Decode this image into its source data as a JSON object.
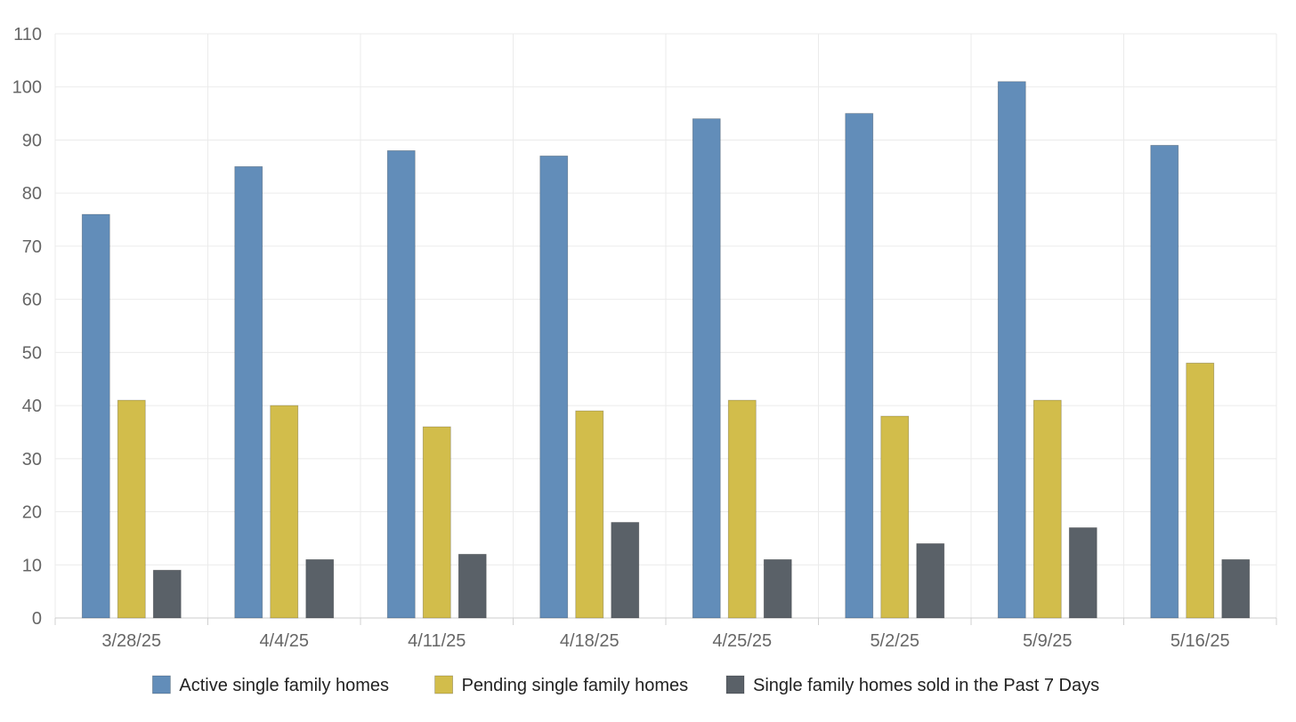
{
  "chart_data": {
    "type": "bar",
    "categories": [
      "3/28/25",
      "4/4/25",
      "4/11/25",
      "4/18/25",
      "4/25/25",
      "5/2/25",
      "5/9/25",
      "5/16/25"
    ],
    "series": [
      {
        "name": "Active single family homes",
        "color": "#628db9",
        "values": [
          76,
          85,
          88,
          87,
          94,
          95,
          101,
          89
        ]
      },
      {
        "name": "Pending single family homes",
        "color": "#d2bd4b",
        "values": [
          41,
          40,
          36,
          39,
          41,
          38,
          41,
          48
        ]
      },
      {
        "name": "Single family homes sold in the Past 7 Days",
        "color": "#5a6168",
        "values": [
          9,
          11,
          12,
          18,
          11,
          14,
          17,
          11
        ]
      }
    ],
    "ylim": [
      0,
      110
    ],
    "yticks": [
      0,
      10,
      20,
      30,
      40,
      50,
      60,
      70,
      80,
      90,
      100,
      110
    ],
    "xlabel": "",
    "ylabel": "",
    "grid": true,
    "legend_position": "bottom"
  }
}
